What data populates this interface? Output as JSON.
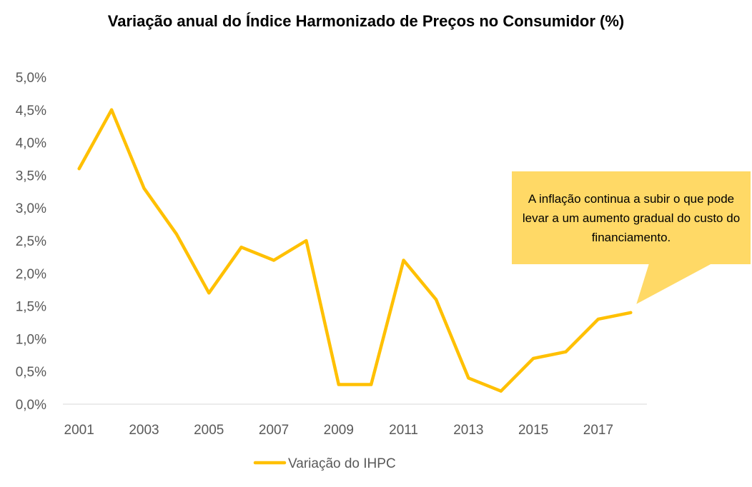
{
  "chart_data": {
    "type": "line",
    "title": "Variação anual do Índice Harmonizado de Preços no Consumidor (%)",
    "xlabel": "",
    "ylabel": "",
    "x": [
      2001,
      2002,
      2003,
      2004,
      2005,
      2006,
      2007,
      2008,
      2009,
      2010,
      2011,
      2012,
      2013,
      2014,
      2015,
      2016,
      2017,
      2018
    ],
    "x_tick_labels": [
      "2001",
      "2003",
      "2005",
      "2007",
      "2009",
      "2011",
      "2013",
      "2015",
      "2017"
    ],
    "y_tick_labels": [
      "0,0%",
      "0,5%",
      "1,0%",
      "1,5%",
      "2,0%",
      "2,5%",
      "3,0%",
      "3,5%",
      "4,0%",
      "4,5%",
      "5,0%"
    ],
    "ylim": [
      0,
      5.0
    ],
    "grid": false,
    "legend_position": "bottom",
    "series": [
      {
        "name": "Variação do IHPC",
        "color": "#ffc000",
        "values": [
          3.6,
          4.5,
          3.3,
          2.6,
          1.7,
          2.4,
          2.2,
          2.5,
          0.3,
          0.3,
          2.2,
          1.6,
          0.4,
          0.2,
          0.7,
          0.8,
          1.3,
          1.4
        ]
      }
    ],
    "annotation": {
      "text": "A inflação continua a subir o que pode levar a um aumento gradual do custo do financiamento.",
      "color": "#ffd966"
    }
  }
}
